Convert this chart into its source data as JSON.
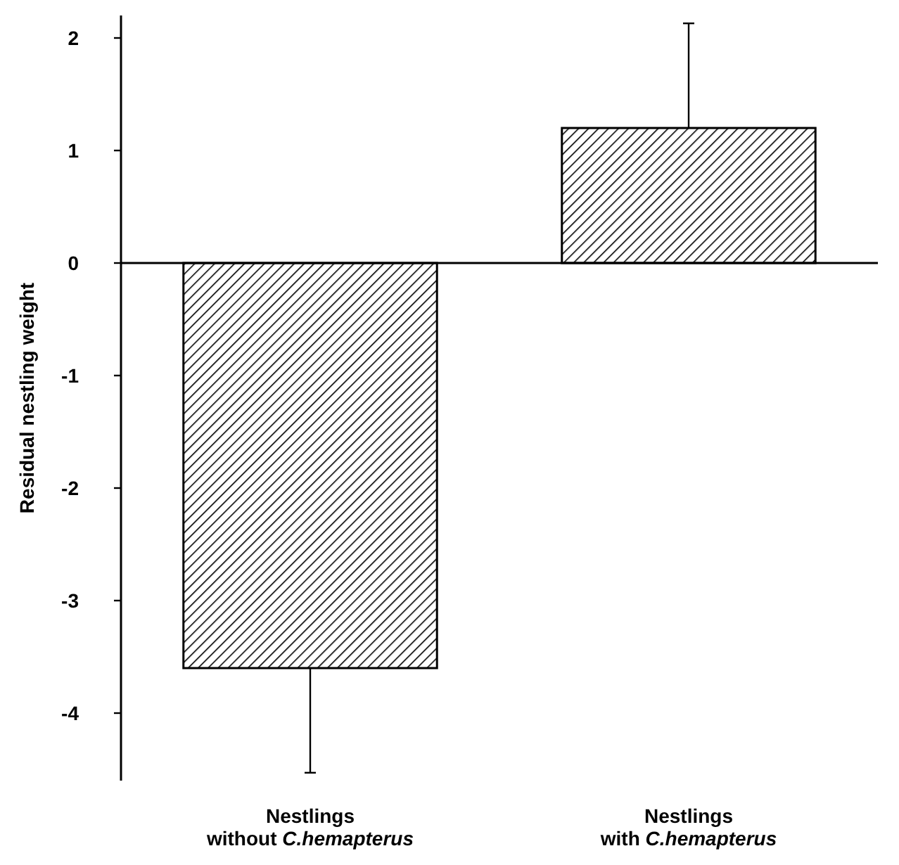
{
  "chart_data": {
    "type": "bar",
    "ylabel": "Residual nestling weight",
    "categories": [
      "Nestlings\nwithout C.hemapterus",
      "Nestlings\nwith C.hemapterus"
    ],
    "values": [
      -3.6,
      1.2
    ],
    "errors": [
      0.93,
      0.93
    ],
    "color": "#000000",
    "ylim": [
      -4.6,
      2.2
    ],
    "yticks": [
      -4,
      -3,
      -2,
      -1,
      0,
      1,
      2
    ],
    "ref_lines": [
      {
        "axis": "y",
        "value": 0
      }
    ]
  }
}
